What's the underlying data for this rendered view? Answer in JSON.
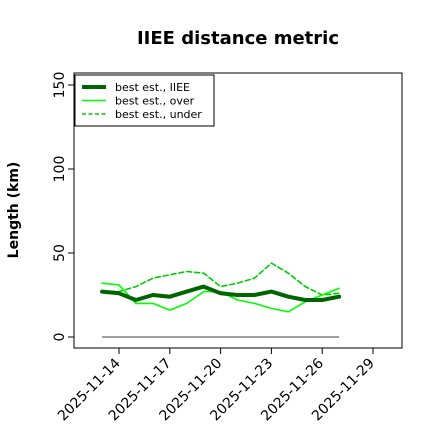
{
  "chart_data": {
    "type": "line",
    "title": "IIEE distance metric",
    "xlabel": "",
    "ylabel": "Length (km)",
    "ylim": [
      0,
      155
    ],
    "xlim": [
      "2025-11-12",
      "2025-12-01"
    ],
    "y_ticks": [
      0,
      50,
      100,
      150
    ],
    "x_ticks": [
      "2025-11-14",
      "2025-11-17",
      "2025-11-20",
      "2025-11-23",
      "2025-11-26",
      "2025-11-29"
    ],
    "legend_position": "top-left",
    "grid": false,
    "x": [
      "2025-11-13",
      "2025-11-14",
      "2025-11-15",
      "2025-11-16",
      "2025-11-17",
      "2025-11-18",
      "2025-11-19",
      "2025-11-20",
      "2025-11-21",
      "2025-11-22",
      "2025-11-23",
      "2025-11-24",
      "2025-11-25",
      "2025-11-26",
      "2025-11-27"
    ],
    "series": [
      {
        "name": "best est., IIEE",
        "color": "#006400",
        "style": "solid-thick",
        "values": [
          27,
          26,
          22,
          25,
          24,
          27,
          30,
          26,
          25,
          25,
          27,
          24,
          22,
          22,
          24
        ]
      },
      {
        "name": "best est., over",
        "color": "#00ff00",
        "style": "solid",
        "values": [
          32,
          31,
          20,
          20,
          16,
          20,
          27,
          27,
          22,
          20,
          17,
          15,
          21,
          25,
          29
        ]
      },
      {
        "name": "best est., under",
        "color": "#00cc00",
        "style": "dashed",
        "values": [
          27,
          27,
          30,
          35,
          37,
          39,
          38,
          30,
          32,
          35,
          44,
          38,
          30,
          25,
          26
        ]
      }
    ],
    "reference_line": {
      "value": 0,
      "color": "#808080"
    }
  }
}
